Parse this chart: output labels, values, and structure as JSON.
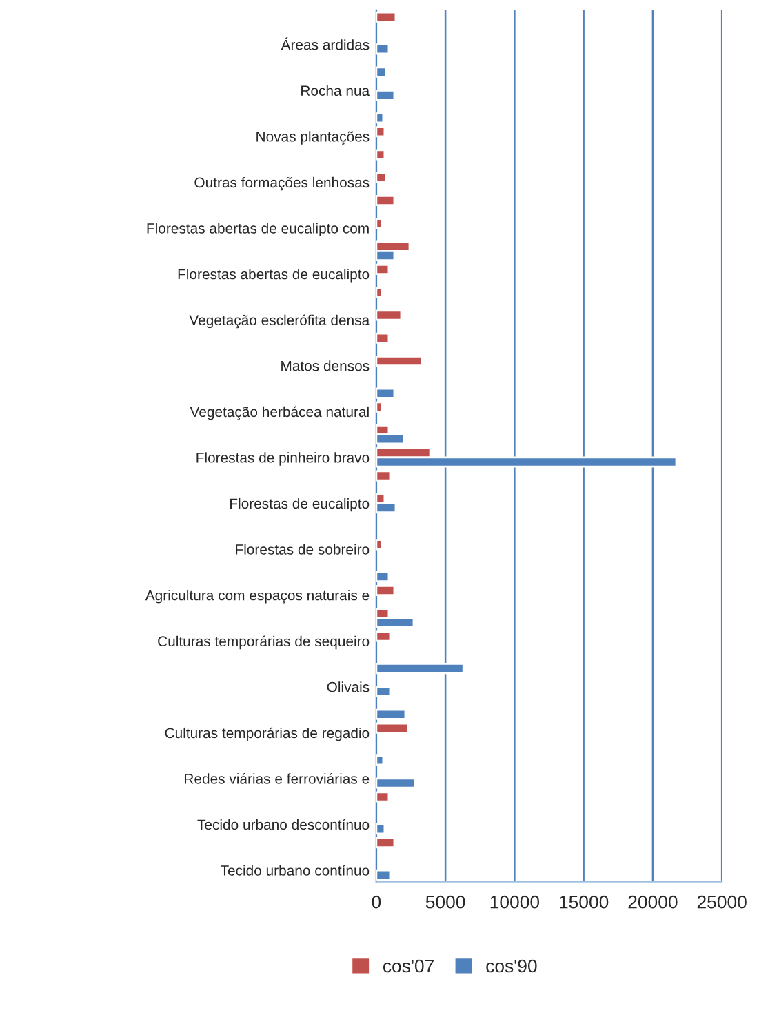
{
  "chart_data": {
    "type": "bar",
    "orientation": "horizontal",
    "categories": [
      null,
      "Áreas ardidas",
      null,
      "Rocha nua",
      null,
      "Novas plantações",
      null,
      "Outras formações lenhosas",
      null,
      "Florestas abertas de eucalipto com",
      null,
      "Florestas abertas de eucalipto",
      null,
      "Vegetação esclerófita densa",
      null,
      "Matos densos",
      null,
      "Vegetação herbácea natural",
      null,
      "Florestas de pinheiro bravo",
      null,
      "Florestas de eucalipto",
      null,
      "Florestas de sobreiro",
      null,
      "Agricultura com espaços naturais e",
      null,
      "Culturas temporárias de sequeiro",
      null,
      "Olivais",
      null,
      "Culturas temporárias de regadio",
      null,
      "Redes viárias e ferroviárias e",
      null,
      "Tecido urbano descontínuo",
      null,
      "Tecido urbano contínuo"
    ],
    "series": [
      {
        "name": "cos'07",
        "color": "#c0504d",
        "values": [
          1400,
          null,
          null,
          null,
          null,
          600,
          600,
          700,
          1300,
          400,
          2400,
          900,
          400,
          1800,
          900,
          3300,
          null,
          400,
          900,
          3900,
          1000,
          600,
          null,
          400,
          null,
          1300,
          900,
          1000,
          null,
          null,
          null,
          2300,
          null,
          null,
          900,
          null,
          1300,
          null
        ]
      },
      {
        "name": "cos'90",
        "color": "#4f81bd",
        "values": [
          null,
          900,
          700,
          1300,
          500,
          null,
          null,
          null,
          null,
          null,
          1300,
          null,
          null,
          null,
          null,
          null,
          1300,
          null,
          2000,
          21700,
          null,
          1400,
          null,
          null,
          900,
          null,
          2700,
          null,
          6300,
          1000,
          2100,
          null,
          500,
          2800,
          null,
          600,
          null,
          1000
        ]
      }
    ],
    "xlim": [
      0,
      25000
    ],
    "xticks": [
      0,
      5000,
      10000,
      15000,
      20000,
      25000
    ],
    "grid": "x",
    "legend": "bottom"
  }
}
